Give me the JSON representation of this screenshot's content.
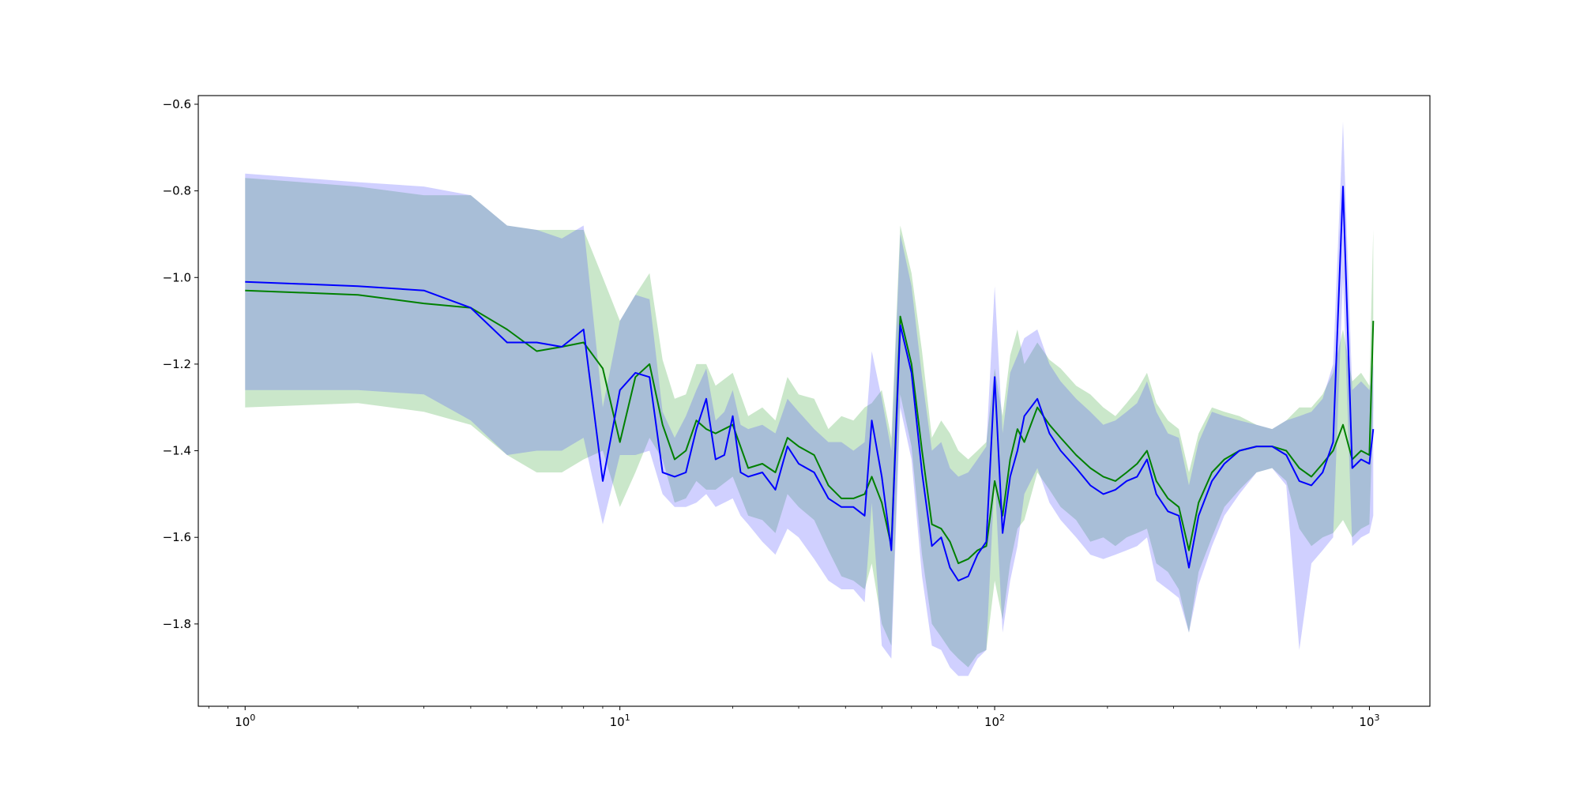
{
  "chart_data": {
    "type": "line",
    "title": "",
    "xlabel": "",
    "ylabel": "",
    "xscale": "log",
    "xlim": [
      0.75,
      1450
    ],
    "ylim": [
      -1.99,
      -0.58
    ],
    "grid": false,
    "legend": "none",
    "x_ticks": [
      {
        "value": 1,
        "base": "10",
        "exp": "0"
      },
      {
        "value": 10,
        "base": "10",
        "exp": "1"
      },
      {
        "value": 100,
        "base": "10",
        "exp": "2"
      },
      {
        "value": 1000,
        "base": "10",
        "exp": "3"
      }
    ],
    "y_ticks": [
      {
        "value": -0.6,
        "label": "−0.6"
      },
      {
        "value": -0.8,
        "label": "−0.8"
      },
      {
        "value": -1.0,
        "label": "−1.0"
      },
      {
        "value": -1.2,
        "label": "−1.2"
      },
      {
        "value": -1.4,
        "label": "−1.4"
      },
      {
        "value": -1.6,
        "label": "−1.6"
      },
      {
        "value": -1.8,
        "label": "−1.8"
      }
    ],
    "series": [
      {
        "color": "#008000",
        "band_color": "#2ca02c",
        "points": [
          [
            1,
            -1.03,
            -1.3,
            -0.77
          ],
          [
            2,
            -1.04,
            -1.29,
            -0.79
          ],
          [
            3,
            -1.06,
            -1.31,
            -0.81
          ],
          [
            4,
            -1.07,
            -1.34,
            -0.81
          ],
          [
            5,
            -1.12,
            -1.41,
            -0.88
          ],
          [
            6,
            -1.17,
            -1.45,
            -0.89
          ],
          [
            7,
            -1.16,
            -1.45,
            -0.89
          ],
          [
            8,
            -1.15,
            -1.42,
            -0.89
          ],
          [
            9,
            -1.21,
            -1.4,
            -1.0
          ],
          [
            10,
            -1.38,
            -1.53,
            -1.1
          ],
          [
            11,
            -1.23,
            -1.45,
            -1.04
          ],
          [
            12,
            -1.2,
            -1.37,
            -0.99
          ],
          [
            13,
            -1.34,
            -1.42,
            -1.19
          ],
          [
            14,
            -1.42,
            -1.52,
            -1.28
          ],
          [
            15,
            -1.4,
            -1.51,
            -1.27
          ],
          [
            16,
            -1.33,
            -1.47,
            -1.2
          ],
          [
            17,
            -1.35,
            -1.49,
            -1.2
          ],
          [
            18,
            -1.36,
            -1.49,
            -1.25
          ],
          [
            20,
            -1.34,
            -1.46,
            -1.22
          ],
          [
            22,
            -1.44,
            -1.55,
            -1.32
          ],
          [
            24,
            -1.43,
            -1.56,
            -1.3
          ],
          [
            26,
            -1.45,
            -1.59,
            -1.33
          ],
          [
            28,
            -1.37,
            -1.5,
            -1.23
          ],
          [
            30,
            -1.39,
            -1.53,
            -1.27
          ],
          [
            33,
            -1.41,
            -1.56,
            -1.28
          ],
          [
            36,
            -1.48,
            -1.63,
            -1.35
          ],
          [
            39,
            -1.51,
            -1.69,
            -1.32
          ],
          [
            42,
            -1.51,
            -1.7,
            -1.33
          ],
          [
            45,
            -1.5,
            -1.72,
            -1.3
          ],
          [
            47,
            -1.46,
            -1.66,
            -1.29
          ],
          [
            50,
            -1.52,
            -1.8,
            -1.26
          ],
          [
            53,
            -1.62,
            -1.85,
            -1.37
          ],
          [
            56,
            -1.09,
            -1.27,
            -0.88
          ],
          [
            60,
            -1.2,
            -1.39,
            -0.99
          ],
          [
            64,
            -1.4,
            -1.64,
            -1.17
          ],
          [
            68,
            -1.57,
            -1.8,
            -1.37
          ],
          [
            72,
            -1.58,
            -1.83,
            -1.33
          ],
          [
            76,
            -1.61,
            -1.86,
            -1.36
          ],
          [
            80,
            -1.66,
            -1.88,
            -1.4
          ],
          [
            85,
            -1.65,
            -1.9,
            -1.42
          ],
          [
            90,
            -1.63,
            -1.87,
            -1.4
          ],
          [
            95,
            -1.62,
            -1.86,
            -1.38
          ],
          [
            100,
            -1.47,
            -1.7,
            -1.21
          ],
          [
            105,
            -1.55,
            -1.79,
            -1.32
          ],
          [
            110,
            -1.42,
            -1.66,
            -1.18
          ],
          [
            115,
            -1.35,
            -1.58,
            -1.12
          ],
          [
            120,
            -1.38,
            -1.56,
            -1.2
          ],
          [
            130,
            -1.3,
            -1.45,
            -1.15
          ],
          [
            140,
            -1.34,
            -1.49,
            -1.19
          ],
          [
            150,
            -1.37,
            -1.53,
            -1.21
          ],
          [
            165,
            -1.41,
            -1.56,
            -1.25
          ],
          [
            180,
            -1.44,
            -1.61,
            -1.27
          ],
          [
            195,
            -1.46,
            -1.6,
            -1.3
          ],
          [
            210,
            -1.47,
            -1.62,
            -1.32
          ],
          [
            225,
            -1.45,
            -1.6,
            -1.29
          ],
          [
            240,
            -1.43,
            -1.59,
            -1.26
          ],
          [
            255,
            -1.4,
            -1.58,
            -1.22
          ],
          [
            270,
            -1.47,
            -1.66,
            -1.29
          ],
          [
            290,
            -1.51,
            -1.68,
            -1.33
          ],
          [
            310,
            -1.53,
            -1.72,
            -1.35
          ],
          [
            330,
            -1.63,
            -1.82,
            -1.45
          ],
          [
            350,
            -1.52,
            -1.68,
            -1.36
          ],
          [
            380,
            -1.45,
            -1.6,
            -1.3
          ],
          [
            410,
            -1.42,
            -1.53,
            -1.31
          ],
          [
            450,
            -1.4,
            -1.49,
            -1.32
          ],
          [
            500,
            -1.39,
            -1.45,
            -1.34
          ],
          [
            550,
            -1.39,
            -1.44,
            -1.35
          ],
          [
            600,
            -1.4,
            -1.47,
            -1.33
          ],
          [
            650,
            -1.44,
            -1.58,
            -1.3
          ],
          [
            700,
            -1.46,
            -1.62,
            -1.3
          ],
          [
            750,
            -1.43,
            -1.6,
            -1.27
          ],
          [
            800,
            -1.4,
            -1.59,
            -1.22
          ],
          [
            850,
            -1.34,
            -1.56,
            -1.12
          ],
          [
            900,
            -1.42,
            -1.6,
            -1.24
          ],
          [
            950,
            -1.4,
            -1.58,
            -1.22
          ],
          [
            1000,
            -1.41,
            -1.57,
            -1.25
          ],
          [
            1024,
            -1.1,
            -1.3,
            -0.89
          ]
        ]
      },
      {
        "color": "#0000ff",
        "band_color": "#4444ff",
        "points": [
          [
            1,
            -1.01,
            -1.26,
            -0.76
          ],
          [
            2,
            -1.02,
            -1.26,
            -0.78
          ],
          [
            3,
            -1.03,
            -1.27,
            -0.79
          ],
          [
            4,
            -1.07,
            -1.33,
            -0.81
          ],
          [
            5,
            -1.15,
            -1.41,
            -0.88
          ],
          [
            6,
            -1.15,
            -1.4,
            -0.89
          ],
          [
            7,
            -1.16,
            -1.4,
            -0.91
          ],
          [
            8,
            -1.12,
            -1.37,
            -0.88
          ],
          [
            9,
            -1.47,
            -1.57,
            -1.3
          ],
          [
            10,
            -1.26,
            -1.41,
            -1.1
          ],
          [
            11,
            -1.22,
            -1.41,
            -1.04
          ],
          [
            12,
            -1.23,
            -1.4,
            -1.05
          ],
          [
            13,
            -1.45,
            -1.5,
            -1.31
          ],
          [
            14,
            -1.46,
            -1.53,
            -1.37
          ],
          [
            15,
            -1.45,
            -1.53,
            -1.32
          ],
          [
            16,
            -1.35,
            -1.52,
            -1.26
          ],
          [
            17,
            -1.28,
            -1.5,
            -1.21
          ],
          [
            18,
            -1.42,
            -1.53,
            -1.33
          ],
          [
            19,
            -1.41,
            -1.52,
            -1.31
          ],
          [
            20,
            -1.32,
            -1.51,
            -1.26
          ],
          [
            21,
            -1.45,
            -1.55,
            -1.34
          ],
          [
            22,
            -1.46,
            -1.57,
            -1.35
          ],
          [
            24,
            -1.45,
            -1.61,
            -1.34
          ],
          [
            26,
            -1.49,
            -1.64,
            -1.36
          ],
          [
            28,
            -1.39,
            -1.58,
            -1.28
          ],
          [
            30,
            -1.43,
            -1.6,
            -1.31
          ],
          [
            33,
            -1.45,
            -1.65,
            -1.35
          ],
          [
            36,
            -1.51,
            -1.7,
            -1.38
          ],
          [
            39,
            -1.53,
            -1.72,
            -1.38
          ],
          [
            42,
            -1.53,
            -1.72,
            -1.4
          ],
          [
            45,
            -1.55,
            -1.75,
            -1.38
          ],
          [
            47,
            -1.33,
            -1.52,
            -1.17
          ],
          [
            50,
            -1.46,
            -1.85,
            -1.28
          ],
          [
            53,
            -1.63,
            -1.88,
            -1.4
          ],
          [
            56,
            -1.11,
            -1.3,
            -0.9
          ],
          [
            60,
            -1.22,
            -1.42,
            -1.02
          ],
          [
            64,
            -1.45,
            -1.69,
            -1.23
          ],
          [
            68,
            -1.62,
            -1.85,
            -1.4
          ],
          [
            72,
            -1.6,
            -1.86,
            -1.38
          ],
          [
            76,
            -1.67,
            -1.9,
            -1.44
          ],
          [
            80,
            -1.7,
            -1.92,
            -1.46
          ],
          [
            85,
            -1.69,
            -1.92,
            -1.45
          ],
          [
            90,
            -1.64,
            -1.88,
            -1.42
          ],
          [
            95,
            -1.61,
            -1.86,
            -1.39
          ],
          [
            100,
            -1.23,
            -1.46,
            -1.02
          ],
          [
            105,
            -1.59,
            -1.82,
            -1.36
          ],
          [
            110,
            -1.46,
            -1.7,
            -1.22
          ],
          [
            115,
            -1.4,
            -1.62,
            -1.18
          ],
          [
            120,
            -1.32,
            -1.5,
            -1.14
          ],
          [
            130,
            -1.28,
            -1.44,
            -1.12
          ],
          [
            140,
            -1.36,
            -1.52,
            -1.2
          ],
          [
            150,
            -1.4,
            -1.56,
            -1.24
          ],
          [
            165,
            -1.44,
            -1.6,
            -1.28
          ],
          [
            180,
            -1.48,
            -1.64,
            -1.31
          ],
          [
            195,
            -1.5,
            -1.65,
            -1.34
          ],
          [
            210,
            -1.49,
            -1.64,
            -1.33
          ],
          [
            225,
            -1.47,
            -1.63,
            -1.31
          ],
          [
            240,
            -1.46,
            -1.62,
            -1.29
          ],
          [
            255,
            -1.42,
            -1.6,
            -1.24
          ],
          [
            270,
            -1.5,
            -1.7,
            -1.31
          ],
          [
            290,
            -1.54,
            -1.72,
            -1.36
          ],
          [
            310,
            -1.55,
            -1.74,
            -1.37
          ],
          [
            330,
            -1.67,
            -1.82,
            -1.48
          ],
          [
            350,
            -1.55,
            -1.71,
            -1.38
          ],
          [
            380,
            -1.47,
            -1.62,
            -1.31
          ],
          [
            410,
            -1.43,
            -1.55,
            -1.32
          ],
          [
            450,
            -1.4,
            -1.5,
            -1.33
          ],
          [
            500,
            -1.39,
            -1.45,
            -1.34
          ],
          [
            550,
            -1.39,
            -1.44,
            -1.35
          ],
          [
            600,
            -1.41,
            -1.48,
            -1.33
          ],
          [
            650,
            -1.47,
            -1.86,
            -1.32
          ],
          [
            700,
            -1.48,
            -1.66,
            -1.31
          ],
          [
            750,
            -1.45,
            -1.63,
            -1.28
          ],
          [
            800,
            -1.38,
            -1.6,
            -1.2
          ],
          [
            850,
            -0.79,
            -1.0,
            -0.64
          ],
          [
            900,
            -1.44,
            -1.62,
            -1.26
          ],
          [
            950,
            -1.42,
            -1.6,
            -1.24
          ],
          [
            1000,
            -1.43,
            -1.59,
            -1.26
          ],
          [
            1024,
            -1.35,
            -1.55,
            -1.2
          ]
        ]
      }
    ]
  }
}
